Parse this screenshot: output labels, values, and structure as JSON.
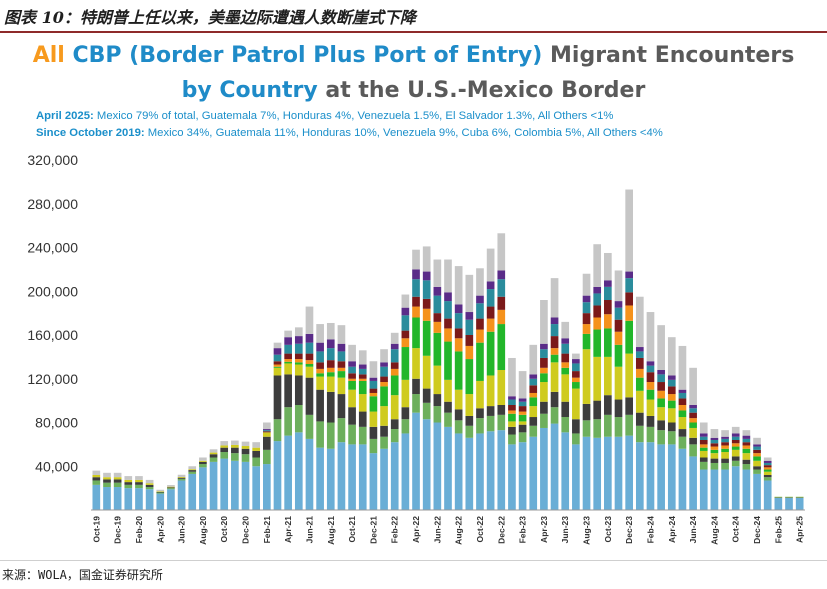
{
  "figure_title": "图表 10：特朗普上任以来，美墨边际遭遇人数断崖式下降",
  "header": {
    "title_line1_a": "All",
    "title_line1_b": "CBP (Border Patrol Plus Port of Entry)",
    "title_line1_c": "Migrant Encounters",
    "title_line2_a": "by Country",
    "title_line2_b": "at the U.S.-Mexico Border",
    "note1_label": "April 2025:",
    "note1_text": "Mexico 79% of total, Guatemala 7%, Honduras 4%, Venezuela 1.5%, El Salvador 1.3%, All Others <1%",
    "note2_label": "Since October 2019:",
    "note2_text": "Mexico 34%, Guatemala 11%, Honduras 10%, Venezuela 9%, Cuba 6%, Colombia 5%, All Others <4%"
  },
  "source": "来源：WOLA，国金证券研究所",
  "chart_data": {
    "type": "bar",
    "stacked": true,
    "ylim": [
      0,
      320000
    ],
    "yticks": [
      40000,
      80000,
      120000,
      160000,
      200000,
      240000,
      280000,
      320000
    ],
    "ytick_labels": [
      "40,000",
      "80,000",
      "120,000",
      "160,000",
      "200,000",
      "240,000",
      "280,000",
      "320,000"
    ],
    "grid": false,
    "legend": "none",
    "categories": [
      "Oct-19",
      "Nov-19",
      "Dec-19",
      "Jan-20",
      "Feb-20",
      "Mar-20",
      "Apr-20",
      "May-20",
      "Jun-20",
      "Jul-20",
      "Aug-20",
      "Sep-20",
      "Oct-20",
      "Nov-20",
      "Dec-20",
      "Jan-21",
      "Feb-21",
      "Mar-21",
      "Apr-21",
      "May-21",
      "Jun-21",
      "Jul-21",
      "Aug-21",
      "Sep-21",
      "Oct-21",
      "Nov-21",
      "Dec-21",
      "Jan-22",
      "Feb-22",
      "Mar-22",
      "Apr-22",
      "May-22",
      "Jun-22",
      "Jul-22",
      "Aug-22",
      "Sep-22",
      "Oct-22",
      "Nov-22",
      "Dec-22",
      "Jan-23",
      "Feb-23",
      "Mar-23",
      "Apr-23",
      "May-23",
      "Jun-23",
      "Jul-23",
      "Aug-23",
      "Sep-23",
      "Oct-23",
      "Nov-23",
      "Dec-23",
      "Jan-24",
      "Feb-24",
      "Mar-24",
      "Apr-24",
      "May-24",
      "Jun-24",
      "Jul-24",
      "Aug-24",
      "Sep-24",
      "Oct-24",
      "Nov-24",
      "Dec-24",
      "Jan-25",
      "Feb-25",
      "Mar-25",
      "Apr-25"
    ],
    "tick_labels": [
      "Oct-19",
      "Dec-19",
      "Feb-20",
      "Apr-20",
      "Jun-20",
      "Aug-20",
      "Oct-20",
      "Dec-20",
      "Feb-21",
      "Apr-21",
      "Jun-21",
      "Aug-21",
      "Oct-21",
      "Dec-21",
      "Feb-22",
      "Apr-22",
      "Jun-22",
      "Aug-22",
      "Oct-22",
      "Dec-22",
      "Feb-23",
      "Apr-23",
      "Jun-23",
      "Aug-23",
      "Oct-23",
      "Dec-23",
      "Feb-24",
      "Apr-24",
      "Jun-24",
      "Aug-24",
      "Oct-24",
      "Dec-24",
      "Feb-25",
      "Apr-25"
    ],
    "series": [
      {
        "color": "#6aaed6",
        "values": [
          23000,
          21000,
          21000,
          20000,
          20000,
          19000,
          15000,
          19000,
          27000,
          33000,
          39000,
          44000,
          47000,
          45000,
          44000,
          40000,
          42000,
          63000,
          68000,
          71000,
          65000,
          57000,
          56000,
          62000,
          60000,
          60000,
          52000,
          56000,
          62000,
          70000,
          89000,
          83000,
          80000,
          76000,
          70000,
          66000,
          70000,
          72000,
          73000,
          60000,
          62000,
          67000,
          75000,
          79000,
          71000,
          60000,
          67000,
          66000,
          67000,
          67000,
          68000,
          62000,
          62000,
          60000,
          60000,
          56000,
          49000,
          37000,
          37000,
          37000,
          40000,
          37000,
          33000,
          27000,
          11000,
          11000,
          11000
        ]
      },
      {
        "color": "#6daf5c",
        "values": [
          4000,
          4000,
          4000,
          3000,
          3000,
          2000,
          1000,
          1000,
          1500,
          2000,
          3000,
          4000,
          6000,
          7000,
          7000,
          8000,
          13000,
          20000,
          26000,
          25000,
          22000,
          24000,
          24000,
          22000,
          18000,
          16000,
          13000,
          11000,
          12000,
          13000,
          17000,
          15000,
          15000,
          13000,
          12000,
          11000,
          14000,
          14000,
          14000,
          9000,
          9000,
          10000,
          13000,
          15000,
          14000,
          10000,
          15000,
          17000,
          20000,
          18000,
          19000,
          15000,
          14000,
          13000,
          12000,
          11000,
          11000,
          7000,
          6000,
          6000,
          5000,
          5000,
          4000,
          3000,
          500,
          500,
          500
        ]
      },
      {
        "color": "#3d3d3d",
        "values": [
          3000,
          3000,
          3000,
          2500,
          2500,
          2000,
          500,
          700,
          1000,
          1500,
          2000,
          3000,
          4000,
          5000,
          5000,
          6000,
          12000,
          40000,
          30000,
          27000,
          34000,
          29000,
          28000,
          22000,
          16000,
          14000,
          11000,
          10000,
          9000,
          11000,
          14000,
          13000,
          11000,
          10000,
          10000,
          9000,
          9000,
          9000,
          9000,
          7000,
          7000,
          8000,
          11000,
          14000,
          14000,
          13000,
          15000,
          17000,
          18000,
          16000,
          16000,
          12000,
          10000,
          9000,
          8000,
          7000,
          6000,
          4000,
          4000,
          4000,
          4000,
          4000,
          3000,
          2000,
          300,
          300,
          300
        ]
      },
      {
        "color": "#cfcb1f",
        "values": [
          2000,
          2000,
          2000,
          2000,
          2000,
          1500,
          500,
          600,
          700,
          800,
          1000,
          1500,
          2000,
          2500,
          2500,
          3000,
          4000,
          7000,
          10000,
          10000,
          10000,
          12000,
          14000,
          15000,
          16000,
          16000,
          14000,
          18000,
          22000,
          25000,
          28000,
          30000,
          26000,
          20000,
          18000,
          20000,
          25000,
          28000,
          32000,
          5000,
          3000,
          10000,
          18000,
          27000,
          25000,
          28000,
          50000,
          40000,
          35000,
          30000,
          40000,
          20000,
          15000,
          12000,
          13000,
          11000,
          9000,
          6000,
          5000,
          6000,
          6000,
          6000,
          5000,
          3000,
          200,
          200,
          200
        ]
      },
      {
        "color": "#22b62a",
        "values": [
          0,
          0,
          0,
          0,
          0,
          0,
          0,
          0,
          0,
          0,
          0,
          0,
          0,
          0,
          0,
          0,
          0,
          1000,
          1500,
          2000,
          2500,
          3000,
          4000,
          6000,
          8000,
          12000,
          14000,
          18000,
          18000,
          30000,
          28000,
          32000,
          30000,
          35000,
          35000,
          32000,
          35000,
          40000,
          42000,
          7000,
          6000,
          8000,
          8000,
          7000,
          6000,
          6000,
          14000,
          25000,
          26000,
          20000,
          30000,
          12000,
          9000,
          8000,
          7000,
          6000,
          5000,
          3000,
          3000,
          3000,
          3000,
          4000,
          4000,
          2000,
          100,
          100,
          100
        ]
      },
      {
        "color": "#f5921c",
        "values": [
          0,
          0,
          0,
          0,
          0,
          0,
          0,
          0,
          0,
          0,
          0,
          0,
          0,
          0,
          0,
          0,
          0,
          2000,
          2500,
          3000,
          3500,
          4000,
          4000,
          3000,
          2000,
          2000,
          3000,
          4000,
          6000,
          8000,
          10000,
          11000,
          10000,
          12000,
          12000,
          12000,
          12000,
          12000,
          13000,
          3000,
          3000,
          4000,
          5000,
          6000,
          5000,
          4000,
          9000,
          11000,
          13000,
          12000,
          14000,
          8000,
          7000,
          7000,
          6000,
          5000,
          4000,
          3000,
          3000,
          3000,
          3000,
          3000,
          3000,
          2000,
          0,
          0,
          0
        ]
      },
      {
        "color": "#7b1a1a",
        "values": [
          0,
          0,
          0,
          0,
          0,
          0,
          0,
          0,
          0,
          0,
          0,
          0,
          0,
          0,
          0,
          0,
          1000,
          3000,
          5000,
          5000,
          6000,
          6000,
          7000,
          6000,
          5000,
          4000,
          4000,
          5000,
          6000,
          7000,
          9000,
          9000,
          8000,
          9000,
          9000,
          10000,
          10000,
          11000,
          12000,
          5000,
          5000,
          7000,
          9000,
          11000,
          8000,
          6000,
          10000,
          11000,
          13000,
          11000,
          12000,
          10000,
          9000,
          8000,
          7000,
          6000,
          5000,
          4000,
          3000,
          3000,
          3000,
          3000,
          3000,
          2000,
          0,
          0,
          0
        ]
      },
      {
        "color": "#2a8c9c",
        "values": [
          0,
          0,
          0,
          0,
          0,
          0,
          0,
          0,
          0,
          0,
          0,
          0,
          0,
          0,
          0,
          0,
          1000,
          6000,
          8000,
          9000,
          10000,
          10000,
          11000,
          9000,
          6000,
          5000,
          7000,
          9000,
          12000,
          14000,
          16000,
          17000,
          16000,
          16000,
          14000,
          14000,
          14000,
          16000,
          16000,
          5000,
          4000,
          6000,
          8000,
          11000,
          9000,
          7000,
          10000,
          11000,
          12000,
          11000,
          13000,
          6000,
          6000,
          7000,
          6000,
          5000,
          4000,
          3000,
          3000,
          3000,
          3000,
          3000,
          3000,
          2000,
          0,
          0,
          0
        ]
      },
      {
        "color": "#5a2c88",
        "values": [
          0,
          0,
          0,
          0,
          0,
          0,
          0,
          0,
          0,
          0,
          0,
          0,
          0,
          0,
          0,
          0,
          1000,
          6000,
          7000,
          7000,
          8000,
          8000,
          8000,
          7000,
          5000,
          4000,
          3000,
          4000,
          5000,
          7000,
          9000,
          8000,
          8000,
          8000,
          8000,
          7000,
          7000,
          7000,
          8000,
          3000,
          3000,
          4000,
          5000,
          6000,
          5000,
          4000,
          6000,
          6000,
          6000,
          6000,
          6000,
          4000,
          4000,
          4000,
          4000,
          3000,
          3000,
          3000,
          2000,
          2000,
          3000,
          3000,
          2000,
          2000,
          0,
          0,
          0
        ]
      },
      {
        "color": "#c6c6c6",
        "values": [
          4000,
          4000,
          4000,
          3500,
          3500,
          3000,
          1500,
          1500,
          2000,
          2700,
          3000,
          3000,
          4000,
          4000,
          4000,
          5000,
          6000,
          5000,
          6000,
          8000,
          25000,
          17000,
          15000,
          17000,
          15000,
          13000,
          15000,
          12000,
          10000,
          12000,
          18000,
          23000,
          25000,
          30000,
          35000,
          34000,
          25000,
          30000,
          34000,
          35000,
          25000,
          27000,
          40000,
          36000,
          15000,
          5000,
          20000,
          39000,
          25000,
          28000,
          75000,
          46000,
          45000,
          41000,
          35000,
          40000,
          34000,
          10000,
          8000,
          6000,
          6000,
          5000,
          6000,
          3000,
          0,
          0,
          0
        ]
      }
    ]
  }
}
